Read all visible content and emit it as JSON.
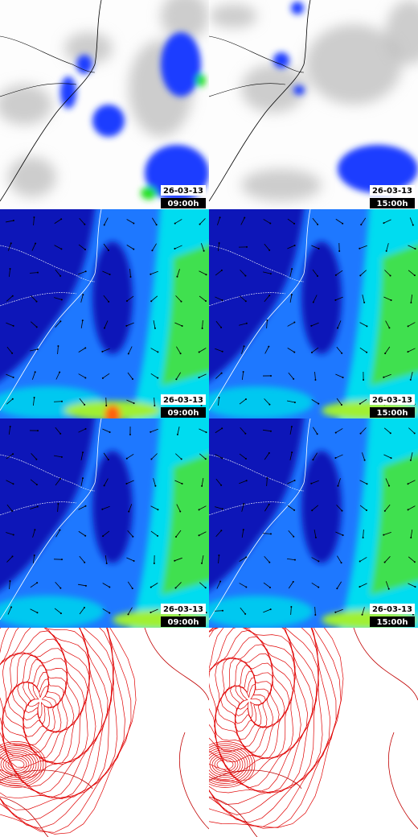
{
  "panels": [
    {
      "date": "26-03-13",
      "time": "09:00h"
    },
    {
      "date": "26-03-13",
      "time": "15:00h"
    },
    {
      "date": "26-03-13",
      "time": "09:00h"
    },
    {
      "date": "26-03-13",
      "time": "15:00h"
    },
    {
      "date": "26-03-13",
      "time": "09:00h"
    },
    {
      "date": "26-03-13",
      "time": "15:00h"
    }
  ]
}
